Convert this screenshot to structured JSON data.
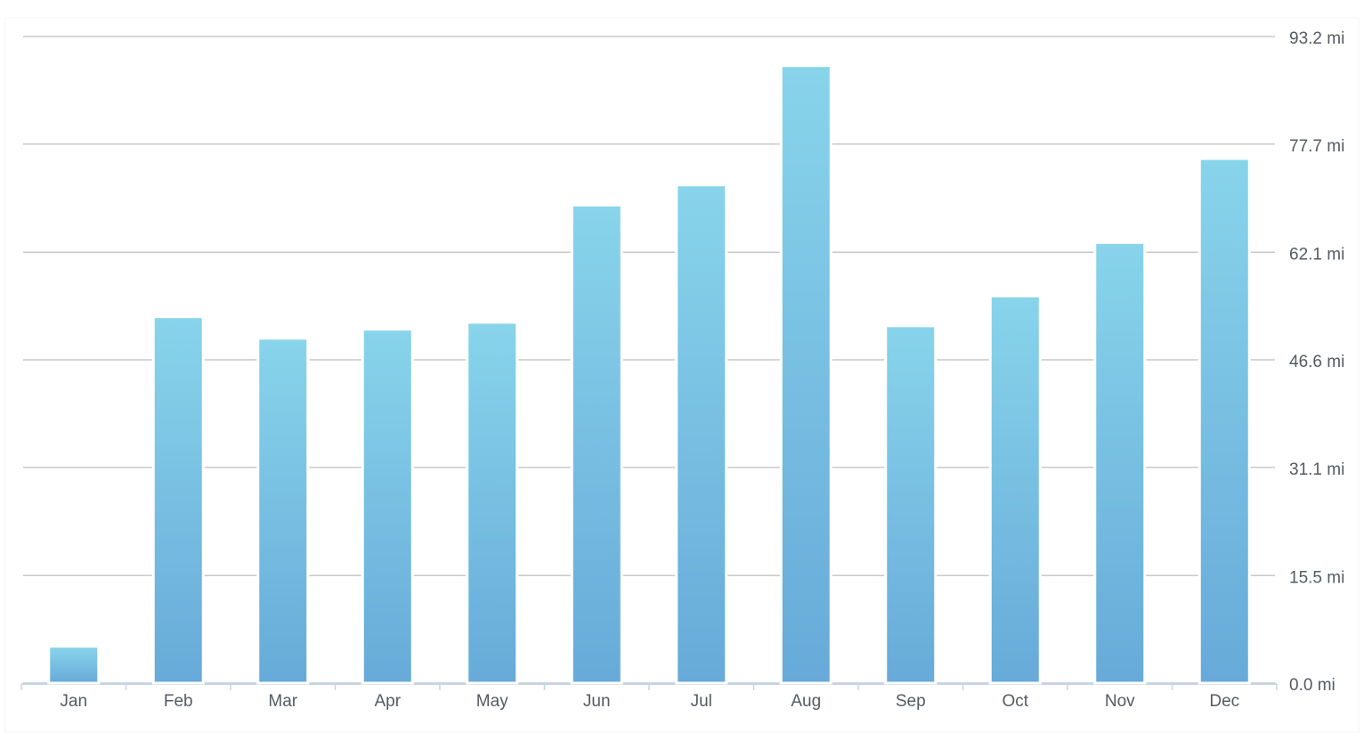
{
  "chart_data": {
    "type": "bar",
    "categories": [
      "Jan",
      "Feb",
      "Mar",
      "Apr",
      "May",
      "Jun",
      "Jul",
      "Aug",
      "Sep",
      "Oct",
      "Nov",
      "Dec"
    ],
    "values": [
      5.3,
      52.8,
      49.7,
      51.0,
      52.0,
      68.9,
      71.8,
      89.0,
      51.5,
      55.8,
      63.5,
      75.6
    ],
    "color": [
      "#88d4eb",
      "#67aad9"
    ],
    "ylim": [
      0,
      93.2
    ],
    "yticks": [
      {
        "value": 0,
        "label": "0.0 mi"
      },
      {
        "value": 15.5,
        "label": "15.5 mi"
      },
      {
        "value": 31.1,
        "label": "31.1 mi"
      },
      {
        "value": 46.6,
        "label": "46.6 mi"
      },
      {
        "value": 62.1,
        "label": "62.1 mi"
      },
      {
        "value": 77.7,
        "label": "77.7 mi"
      },
      {
        "value": 93.2,
        "label": "93.2 mi"
      }
    ],
    "grid": true
  }
}
